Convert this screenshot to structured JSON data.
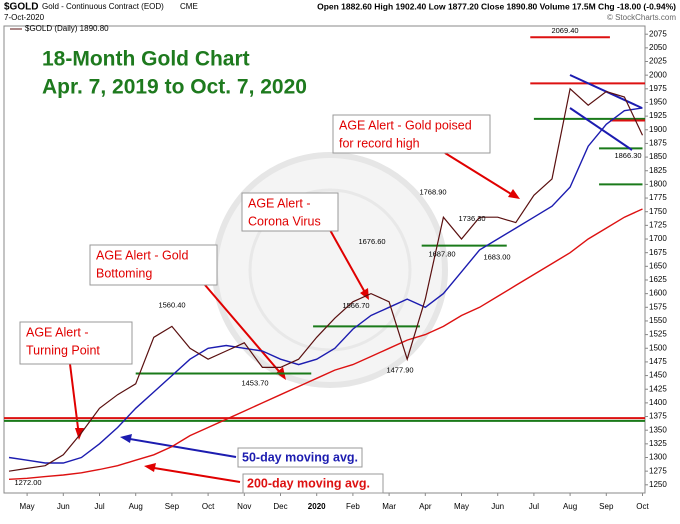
{
  "header": {
    "symbol": "$GOLD",
    "name": "Gold - Continuous Contract (EOD)",
    "exchange": "CME",
    "date": "7-Oct-2020",
    "quote": "Open 1882.60  High 1902.40  Low 1877.20  Close 1890.80  Volume 17.5M  Chg -18.00 (-0.94%)",
    "source": "© StockCharts.com"
  },
  "chart_data": {
    "type": "line",
    "title": "18-Month Gold Chart",
    "subtitle": "Apr. 7, 2019 to Oct. 7, 2020",
    "legend_label": "$GOLD (Daily) 1890.80",
    "categories": [
      null,
      "May",
      null,
      "Jun",
      null,
      "Jul",
      null,
      "Aug",
      null,
      "Sep",
      null,
      "Oct",
      null,
      "Nov",
      null,
      "Dec",
      null,
      "2020",
      null,
      "Feb",
      null,
      "Mar",
      null,
      "Apr",
      null,
      "May",
      null,
      "Jun",
      null,
      "Jul",
      null,
      "Aug",
      null,
      "Sep",
      null,
      "Oct"
    ],
    "series": [
      {
        "name": "$GOLD",
        "color": "#5a1010",
        "values": [
          1275,
          1280,
          1285,
          1305,
          1345,
          1390,
          1415,
          1435,
          1520,
          1540,
          1500,
          1480,
          1495,
          1510,
          1465,
          1465,
          1480,
          1520,
          1555,
          1585,
          1600,
          1585,
          1480,
          1590,
          1740,
          1700,
          1740,
          1740,
          1730,
          1780,
          1810,
          1975,
          1945,
          1970,
          1960,
          1890
        ]
      },
      {
        "name": "50-day moving avg.",
        "color": "#1c1cb0",
        "values": [
          1300,
          1295,
          1290,
          1290,
          1300,
          1325,
          1355,
          1390,
          1420,
          1450,
          1480,
          1500,
          1505,
          1500,
          1495,
          1480,
          1470,
          1480,
          1500,
          1535,
          1560,
          1575,
          1590,
          1575,
          1600,
          1640,
          1680,
          1700,
          1720,
          1740,
          1760,
          1795,
          1870,
          1910,
          1935,
          1940
        ]
      },
      {
        "name": "200-day moving avg.",
        "color": "#dd1111",
        "values": [
          1260,
          1262,
          1265,
          1268,
          1272,
          1278,
          1285,
          1295,
          1305,
          1320,
          1340,
          1355,
          1370,
          1385,
          1400,
          1415,
          1430,
          1445,
          1460,
          1470,
          1485,
          1500,
          1515,
          1525,
          1540,
          1560,
          1575,
          1595,
          1615,
          1635,
          1655,
          1675,
          1700,
          1720,
          1740,
          1755
        ]
      }
    ],
    "ylim": [
      1235,
      2090
    ],
    "yticks": [
      1250,
      1275,
      1300,
      1325,
      1350,
      1375,
      1400,
      1425,
      1450,
      1475,
      1500,
      1525,
      1550,
      1575,
      1600,
      1625,
      1650,
      1675,
      1700,
      1725,
      1750,
      1775,
      1800,
      1825,
      1850,
      1875,
      1900,
      1925,
      1950,
      1975,
      2000,
      2025,
      2050,
      2075
    ],
    "grid": false,
    "levels": [
      {
        "value": 1372,
        "color": "#dd1111"
      },
      {
        "value": 1367,
        "color": "#1a7a1a"
      },
      {
        "value": 1453.7,
        "color": "#1a7a1a"
      },
      {
        "value": 1540,
        "color": "#1a7a1a"
      },
      {
        "value": 1687.8,
        "color": "#1a7a1a"
      },
      {
        "value": 1920,
        "color": "#1a7a1a"
      },
      {
        "value": 1866,
        "color": "#1a7a1a"
      },
      {
        "value": 1800,
        "color": "#1a7a1a"
      },
      {
        "value": 2069.4,
        "color": "#dd1111"
      },
      {
        "value": 1985,
        "color": "#dd1111"
      },
      {
        "value": 1917,
        "color": "#dd1111"
      }
    ],
    "point_labels": [
      {
        "value": 1272,
        "label": "1272.00"
      },
      {
        "value": 1560.4,
        "label": "1560.40"
      },
      {
        "value": 1453.7,
        "label": "1453.70"
      },
      {
        "value": 1676.6,
        "label": "1676.60"
      },
      {
        "value": 1566.7,
        "label": "1566.70"
      },
      {
        "value": 1477.9,
        "label": "1477.90"
      },
      {
        "value": 1768.9,
        "label": "1768.90"
      },
      {
        "value": 1736.3,
        "label": "1736.30"
      },
      {
        "value": 1687.8,
        "label": "1687.80"
      },
      {
        "value": 1683,
        "label": "1683.00"
      },
      {
        "value": 2069.4,
        "label": "2069.40"
      },
      {
        "value": 1866.3,
        "label": "1866.30"
      }
    ],
    "callouts": [
      {
        "lines": [
          "AGE Alert -",
          "Turning Point"
        ]
      },
      {
        "lines": [
          "AGE Alert - Gold",
          "Bottoming"
        ]
      },
      {
        "lines": [
          "AGE Alert -",
          "Corona Virus"
        ]
      },
      {
        "lines": [
          "AGE Alert - Gold poised",
          "for record high"
        ]
      }
    ]
  }
}
